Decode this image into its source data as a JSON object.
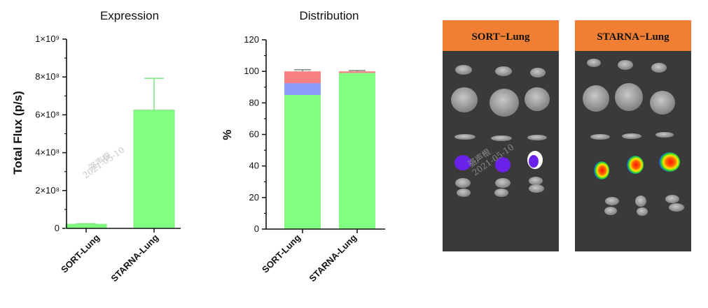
{
  "charts": [
    {
      "type": "bar",
      "title": "Expression",
      "ylabel": "Total Flux (p/s)",
      "categories": [
        "SORT-Lung",
        "STARNA-Lung"
      ],
      "ytick_labels": [
        "0",
        "2×10⁸",
        "4×10⁸",
        "6×10⁸",
        "8×10⁸",
        "1×10⁹"
      ],
      "watermark": [
        "骆声根",
        "2021-05-10"
      ]
    },
    {
      "type": "bar",
      "title": "Distribution",
      "ylabel": "%",
      "categories": [
        "SORT-Lung",
        "STARNA-Lung"
      ],
      "ytick_labels": [
        "0",
        "20",
        "40",
        "60",
        "80",
        "100",
        "120"
      ]
    }
  ],
  "chart_data": [
    {
      "type": "bar",
      "title": "Expression",
      "ylabel": "Total Flux (p/s)",
      "categories": [
        "SORT-Lung",
        "STARNA-Lung"
      ],
      "values": [
        22000000,
        625000000
      ],
      "errors": [
        3000000,
        168000000
      ],
      "ylim": [
        0,
        1000000000
      ],
      "yticks": [
        0,
        200000000,
        400000000,
        600000000,
        800000000,
        1000000000
      ],
      "colors": {
        "bar": "#80ff80",
        "edge": "#7ee67e"
      }
    },
    {
      "type": "bar",
      "stacked": true,
      "title": "Distribution",
      "ylabel": "%",
      "categories": [
        "SORT-Lung",
        "STARNA-Lung"
      ],
      "series": [
        {
          "values": [
            85,
            99
          ],
          "errors": [
            0,
            0
          ],
          "color": "#80ff80"
        },
        {
          "values": [
            7.5,
            0
          ],
          "errors": [
            2,
            0
          ],
          "color": "#8c9cf8"
        },
        {
          "values": [
            7.5,
            1
          ],
          "errors": [
            1,
            0.5
          ],
          "color": "#f88080"
        }
      ],
      "ylim": [
        0,
        120
      ],
      "yticks": [
        0,
        20,
        40,
        60,
        80,
        100,
        120
      ]
    }
  ],
  "images": {
    "panels": [
      {
        "label": "SORT−Lung"
      },
      {
        "label": "STARNA−Lung"
      }
    ],
    "label_bg": "#f07f33",
    "image_bg": "#3a3a3a",
    "watermark": [
      "骆声根",
      "2021-05-10"
    ]
  }
}
